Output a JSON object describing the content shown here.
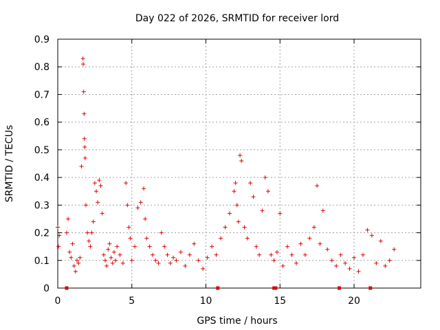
{
  "chart_data": {
    "type": "scatter",
    "title": "Day 022 of 2026, SRMTID for receiver lord",
    "xlabel": "GPS time / hours",
    "ylabel": "SRMTID / TECUs",
    "xlim": [
      0,
      24.5
    ],
    "ylim": [
      0,
      0.9
    ],
    "xticks": [
      0,
      5,
      10,
      15,
      20
    ],
    "xtick_labels": [
      "0",
      "5",
      "10",
      "15",
      "20"
    ],
    "yticks": [
      0,
      0.1,
      0.2,
      0.3,
      0.4,
      0.5,
      0.6,
      0.7,
      0.8,
      0.9
    ],
    "ytick_labels": [
      "0",
      "0.1",
      "0.2",
      "0.3",
      "0.4",
      "0.5",
      "0.6",
      "0.7",
      "0.8",
      "0.9"
    ],
    "grid": true,
    "marker": "+",
    "color": "#e00000",
    "series": [
      {
        "name": "SRMTID",
        "x": [
          0.0,
          0.05,
          0.1,
          0.6,
          0.7,
          0.8,
          0.9,
          1.0,
          1.1,
          1.2,
          1.3,
          1.4,
          1.5,
          1.6,
          1.7,
          1.72,
          1.75,
          1.78,
          1.8,
          1.82,
          1.85,
          1.9,
          2.0,
          2.1,
          2.2,
          2.3,
          2.4,
          2.5,
          2.6,
          2.7,
          2.8,
          2.9,
          3.0,
          3.1,
          3.2,
          3.3,
          3.4,
          3.5,
          3.6,
          3.7,
          3.8,
          3.9,
          4.0,
          4.2,
          4.4,
          4.6,
          4.7,
          4.8,
          4.9,
          5.0,
          5.2,
          5.4,
          5.6,
          5.8,
          5.9,
          6.0,
          6.2,
          6.4,
          6.6,
          6.8,
          7.0,
          7.2,
          7.4,
          7.6,
          7.8,
          8.0,
          8.3,
          8.6,
          8.9,
          9.2,
          9.5,
          9.8,
          10.1,
          10.4,
          10.7,
          11.0,
          11.3,
          11.6,
          11.9,
          12.0,
          12.1,
          12.2,
          12.3,
          12.4,
          12.6,
          12.8,
          13.0,
          13.2,
          13.4,
          13.6,
          13.8,
          14.0,
          14.2,
          14.4,
          14.6,
          14.8,
          15.0,
          15.2,
          15.5,
          15.8,
          16.1,
          16.4,
          16.7,
          17.0,
          17.3,
          17.5,
          17.7,
          17.9,
          18.2,
          18.5,
          18.8,
          19.1,
          19.4,
          19.7,
          20.0,
          20.3,
          20.6,
          20.9,
          21.2,
          21.5,
          21.8,
          22.1,
          22.4,
          22.7
        ],
        "y": [
          0.22,
          0.15,
          0.19,
          0.2,
          0.25,
          0.13,
          0.11,
          0.16,
          0.08,
          0.06,
          0.1,
          0.09,
          0.11,
          0.44,
          0.83,
          0.81,
          0.71,
          0.63,
          0.54,
          0.51,
          0.47,
          0.3,
          0.2,
          0.17,
          0.15,
          0.2,
          0.24,
          0.38,
          0.35,
          0.31,
          0.39,
          0.37,
          0.27,
          0.12,
          0.1,
          0.08,
          0.14,
          0.16,
          0.11,
          0.09,
          0.13,
          0.1,
          0.15,
          0.12,
          0.09,
          0.38,
          0.3,
          0.22,
          0.18,
          0.1,
          0.15,
          0.29,
          0.31,
          0.36,
          0.25,
          0.18,
          0.15,
          0.12,
          0.1,
          0.09,
          0.2,
          0.15,
          0.12,
          0.09,
          0.11,
          0.1,
          0.13,
          0.08,
          0.12,
          0.16,
          0.1,
          0.07,
          0.11,
          0.15,
          0.12,
          0.18,
          0.22,
          0.27,
          0.35,
          0.38,
          0.3,
          0.24,
          0.48,
          0.46,
          0.22,
          0.18,
          0.38,
          0.33,
          0.15,
          0.12,
          0.28,
          0.4,
          0.35,
          0.12,
          0.1,
          0.13,
          0.27,
          0.08,
          0.15,
          0.12,
          0.09,
          0.16,
          0.12,
          0.18,
          0.22,
          0.37,
          0.16,
          0.28,
          0.14,
          0.1,
          0.08,
          0.12,
          0.09,
          0.07,
          0.11,
          0.06,
          0.12,
          0.21,
          0.19,
          0.09,
          0.17,
          0.08,
          0.1,
          0.14
        ]
      }
    ],
    "axis_markers": [
      0.6,
      10.8,
      14.6,
      14.7,
      19.0,
      21.1
    ]
  }
}
